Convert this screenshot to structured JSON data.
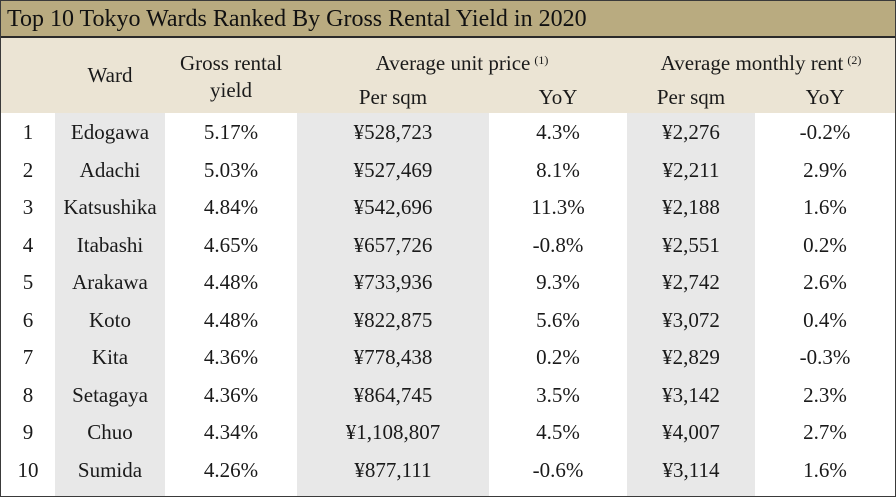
{
  "title": "Top 10 Tokyo Wards Ranked By Gross Rental Yield in 2020",
  "headers": {
    "ward": "Ward",
    "gross_yield_line1": "Gross rental",
    "gross_yield_line2": "yield",
    "unit_price": "Average unit price",
    "unit_price_note": "(1)",
    "monthly_rent": "Average monthly rent",
    "monthly_rent_note": "(2)",
    "per_sqm_price": "Per sqm",
    "yoy_price": "YoY",
    "per_sqm_rent": "Per sqm",
    "yoy_rent": "YoY"
  },
  "rows": [
    {
      "rank": "1",
      "ward": "Edogawa",
      "yield": "5.17%",
      "price": "¥528,723",
      "price_yoy": "4.3%",
      "rent": "¥2,276",
      "rent_yoy": "-0.2%"
    },
    {
      "rank": "2",
      "ward": "Adachi",
      "yield": "5.03%",
      "price": "¥527,469",
      "price_yoy": "8.1%",
      "rent": "¥2,211",
      "rent_yoy": "2.9%"
    },
    {
      "rank": "3",
      "ward": "Katsushika",
      "yield": "4.84%",
      "price": "¥542,696",
      "price_yoy": "11.3%",
      "rent": "¥2,188",
      "rent_yoy": "1.6%"
    },
    {
      "rank": "4",
      "ward": "Itabashi",
      "yield": "4.65%",
      "price": "¥657,726",
      "price_yoy": "-0.8%",
      "rent": "¥2,551",
      "rent_yoy": "0.2%"
    },
    {
      "rank": "5",
      "ward": "Arakawa",
      "yield": "4.48%",
      "price": "¥733,936",
      "price_yoy": "9.3%",
      "rent": "¥2,742",
      "rent_yoy": "2.6%"
    },
    {
      "rank": "6",
      "ward": "Koto",
      "yield": "4.48%",
      "price": "¥822,875",
      "price_yoy": "5.6%",
      "rent": "¥3,072",
      "rent_yoy": "0.4%"
    },
    {
      "rank": "7",
      "ward": "Kita",
      "yield": "4.36%",
      "price": "¥778,438",
      "price_yoy": "0.2%",
      "rent": "¥2,829",
      "rent_yoy": "-0.3%"
    },
    {
      "rank": "8",
      "ward": "Setagaya",
      "yield": "4.36%",
      "price": "¥864,745",
      "price_yoy": "3.5%",
      "rent": "¥3,142",
      "rent_yoy": "2.3%"
    },
    {
      "rank": "9",
      "ward": "Chuo",
      "yield": "4.34%",
      "price": "¥1,108,807",
      "price_yoy": "4.5%",
      "rent": "¥4,007",
      "rent_yoy": "2.7%"
    },
    {
      "rank": "10",
      "ward": "Sumida",
      "yield": "4.26%",
      "price": "¥877,111",
      "price_yoy": "-0.6%",
      "rent": "¥3,114",
      "rent_yoy": "1.6%"
    }
  ]
}
